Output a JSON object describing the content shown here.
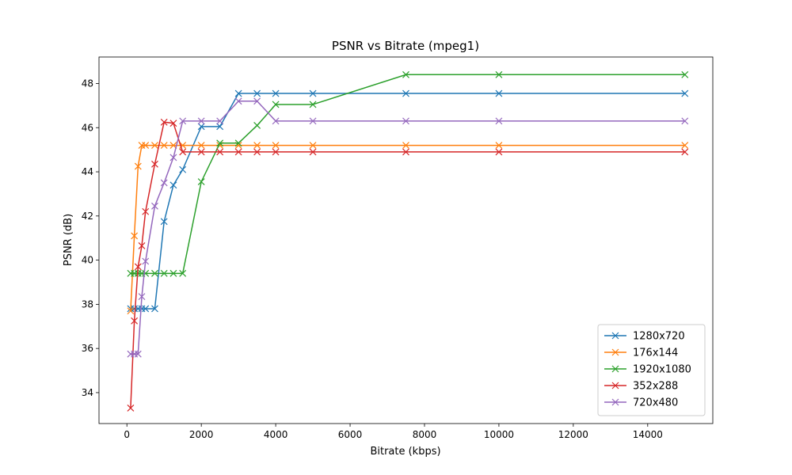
{
  "chart_data": {
    "type": "line",
    "title": "PSNR vs Bitrate (mpeg1)",
    "xlabel": "Bitrate (kbps)",
    "ylabel": "PSNR (dB)",
    "xlim": [
      -750,
      15750
    ],
    "ylim": [
      32.6,
      49.2
    ],
    "xticks": [
      0,
      2000,
      4000,
      6000,
      8000,
      10000,
      12000,
      14000
    ],
    "yticks": [
      34,
      36,
      38,
      40,
      42,
      44,
      46,
      48
    ],
    "grid": false,
    "legend_position": "lower-right",
    "marker": "x",
    "series": [
      {
        "name": "1280x720",
        "color": "#1f77b4",
        "x": [
          100,
          200,
          300,
          400,
          500,
          750,
          1000,
          1250,
          1500,
          2000,
          2500,
          3000,
          3500,
          4000,
          5000,
          7500,
          10000,
          15000
        ],
        "y": [
          37.8,
          37.8,
          37.8,
          37.8,
          37.8,
          37.8,
          41.75,
          43.4,
          44.1,
          46.05,
          46.05,
          47.55,
          47.55,
          47.55,
          47.55,
          47.55,
          47.55,
          47.55
        ]
      },
      {
        "name": "176x144",
        "color": "#ff7f0e",
        "x": [
          100,
          200,
          300,
          400,
          500,
          750,
          1000,
          1250,
          1500,
          2000,
          2500,
          3000,
          3500,
          4000,
          5000,
          7500,
          10000,
          15000
        ],
        "y": [
          37.7,
          41.1,
          44.25,
          45.2,
          45.2,
          45.2,
          45.2,
          45.2,
          45.2,
          45.2,
          45.2,
          45.2,
          45.2,
          45.2,
          45.2,
          45.2,
          45.2,
          45.2
        ]
      },
      {
        "name": "1920x1080",
        "color": "#2ca02c",
        "x": [
          100,
          200,
          300,
          400,
          500,
          750,
          1000,
          1250,
          1500,
          2000,
          2500,
          3000,
          3500,
          4000,
          5000,
          7500,
          10000,
          15000
        ],
        "y": [
          39.4,
          39.4,
          39.4,
          39.4,
          39.4,
          39.4,
          39.4,
          39.4,
          39.4,
          43.55,
          45.3,
          45.3,
          46.1,
          47.05,
          47.05,
          48.4,
          48.4,
          48.4
        ]
      },
      {
        "name": "352x288",
        "color": "#d62728",
        "x": [
          100,
          200,
          300,
          400,
          500,
          750,
          1000,
          1250,
          1500,
          2000,
          2500,
          3000,
          3500,
          4000,
          5000,
          7500,
          10000,
          15000
        ],
        "y": [
          33.3,
          37.25,
          39.7,
          40.65,
          42.2,
          44.35,
          46.25,
          46.2,
          44.9,
          44.9,
          44.9,
          44.9,
          44.9,
          44.9,
          44.9,
          44.9,
          44.9,
          44.9
        ]
      },
      {
        "name": "720x480",
        "color": "#9467bd",
        "x": [
          100,
          200,
          300,
          400,
          500,
          750,
          1000,
          1250,
          1500,
          2000,
          2500,
          3000,
          3500,
          4000,
          5000,
          7500,
          10000,
          15000
        ],
        "y": [
          35.75,
          35.75,
          35.75,
          38.35,
          39.95,
          42.45,
          43.5,
          44.65,
          46.3,
          46.3,
          46.3,
          47.2,
          47.2,
          46.3,
          46.3,
          46.3,
          46.3,
          46.3
        ]
      }
    ]
  }
}
